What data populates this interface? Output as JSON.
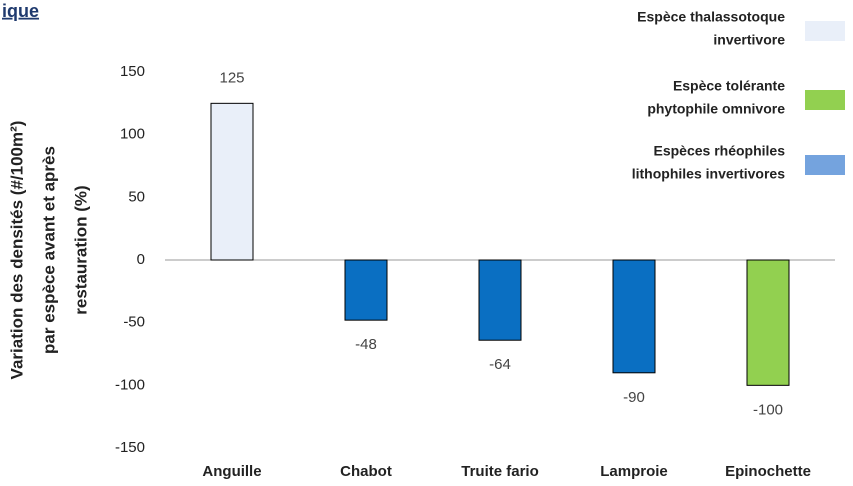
{
  "chart_data": {
    "type": "bar",
    "title": "ique",
    "y_label": [
      "Variation des densités (#/100m²)",
      "par espèce avant et après",
      "restauration (%)"
    ],
    "categories": [
      "Anguille",
      "Chabot",
      "Truite fario",
      "Lamproie",
      "Epinochette"
    ],
    "series": [
      {
        "name": [
          "Espèce thalassotoque",
          "invertivore"
        ],
        "color": "#e9eff9",
        "legend_color": "#e9eff9",
        "values": [
          125,
          null,
          null,
          null,
          null
        ]
      },
      {
        "name": [
          "Espèce tolérante",
          "phytophile omnivore"
        ],
        "color": "#92d050",
        "legend_color": "#92d050",
        "values": [
          null,
          null,
          null,
          null,
          -100
        ]
      },
      {
        "name": [
          "Espèces rhéophiles",
          "lithophiles invertivores"
        ],
        "color": "#0a6fc2",
        "legend_color": "#74a3de",
        "values": [
          null,
          -48,
          -64,
          -90,
          null
        ]
      }
    ],
    "ylim": [
      -150,
      150
    ],
    "yticks": [
      -150,
      -100,
      -50,
      0,
      50,
      100,
      150
    ],
    "grid": false,
    "legend": "top-right"
  }
}
